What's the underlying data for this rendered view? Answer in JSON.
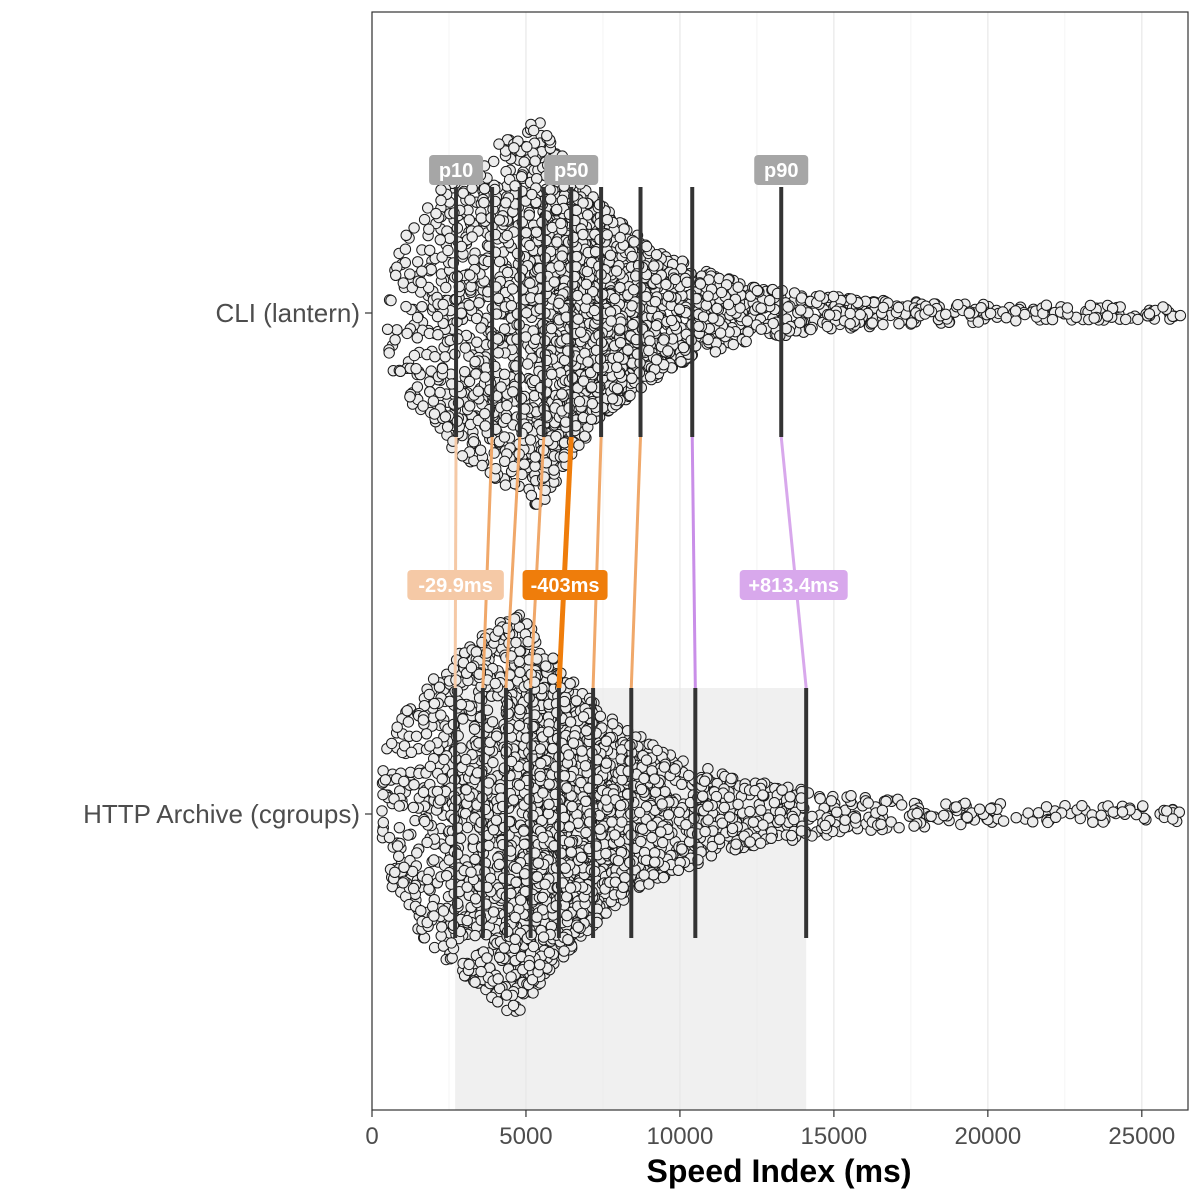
{
  "chart_data": {
    "type": "scatter",
    "subtype": "beeswarm-quantile-comparison",
    "xlabel": "Speed Index (ms)",
    "ylabel": "",
    "xlim": [
      0,
      26500
    ],
    "xticks": [
      0,
      5000,
      10000,
      15000,
      20000,
      25000
    ],
    "grid": true,
    "categories": [
      "CLI (lantern)",
      "HTTP Archive (cgroups)"
    ],
    "series": [
      {
        "name": "CLI (lantern)",
        "quantiles": [
          2730,
          3900,
          4800,
          5580,
          6470,
          7440,
          8720,
          10400,
          13290
        ],
        "distribution": {
          "min": 500,
          "mode": 5500,
          "max": 26500
        }
      },
      {
        "name": "HTTP Archive (cgroups)",
        "quantiles": [
          2700,
          3600,
          4350,
          5150,
          6070,
          7180,
          8420,
          10500,
          14100
        ],
        "distribution": {
          "min": 300,
          "mode": 4800,
          "max": 26500
        }
      }
    ],
    "percentile_labels": [
      {
        "text": "p10",
        "quantile_index": 0
      },
      {
        "text": "p50",
        "quantile_index": 4
      },
      {
        "text": "p90",
        "quantile_index": 8
      }
    ],
    "difference_labels": [
      {
        "text": "-29.9ms",
        "quantile_index": 0,
        "color": "#f5c9a6"
      },
      {
        "text": "-403ms",
        "quantile_index": 4,
        "color": "#ef7d0b"
      },
      {
        "text": "+813.4ms",
        "quantile_index": 8,
        "color": "#d8a8ec"
      }
    ],
    "connector_colors": [
      "#f5c9a6",
      "#f0a86a",
      "#f0a86a",
      "#f0a86a",
      "#ef7d0b",
      "#f0a86a",
      "#f0a86a",
      "#c98ee8",
      "#d8a8ec"
    ],
    "shaded_range": {
      "from": 2700,
      "to": 14100,
      "category": "HTTP Archive (cgroups)"
    }
  }
}
